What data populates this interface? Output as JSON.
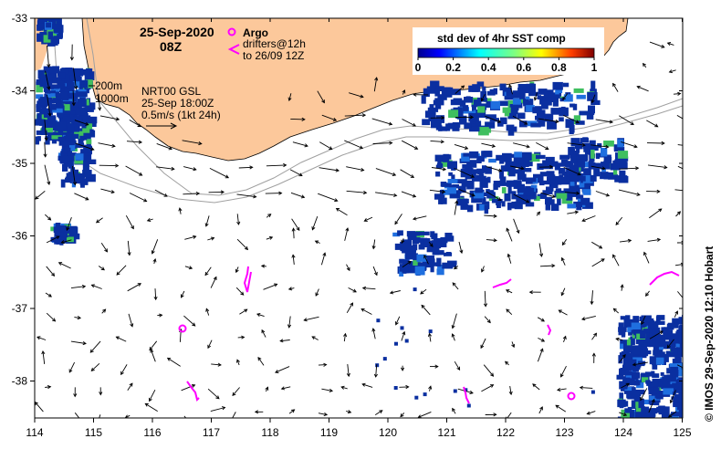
{
  "map": {
    "date_line1": "25-Sep-2020",
    "date_line2": "08Z",
    "argo_label": "Argo",
    "drifters_label_1": "drifters@12h",
    "drifters_label_2": "to 26/09 12Z",
    "contour_200": "200m",
    "contour_1000": "1000m",
    "current_product": "NRT00 GSL",
    "current_time": "25-Sep 18:00Z",
    "scale_label": "0.5m/s (1kt 24h)",
    "colorbar_title": "std dev of 4hr SST comp",
    "colorbar_ticks": [
      "0",
      "0.2",
      "0.4",
      "0.6",
      "0.8",
      "1"
    ],
    "credit": "© IMOS 29-Sep-2020 12:10 Hobart",
    "lon_ticks": [
      "114",
      "115",
      "116",
      "117",
      "118",
      "119",
      "120",
      "121",
      "122",
      "123",
      "124",
      "125"
    ],
    "lat_ticks": [
      "-33",
      "-34",
      "-35",
      "-36",
      "-37",
      "-38"
    ],
    "colors": {
      "land": "#fcc89b",
      "sst_patch": "#0a2fa0",
      "argo": "#ff00ff",
      "contour": "#a0a0a0"
    }
  }
}
